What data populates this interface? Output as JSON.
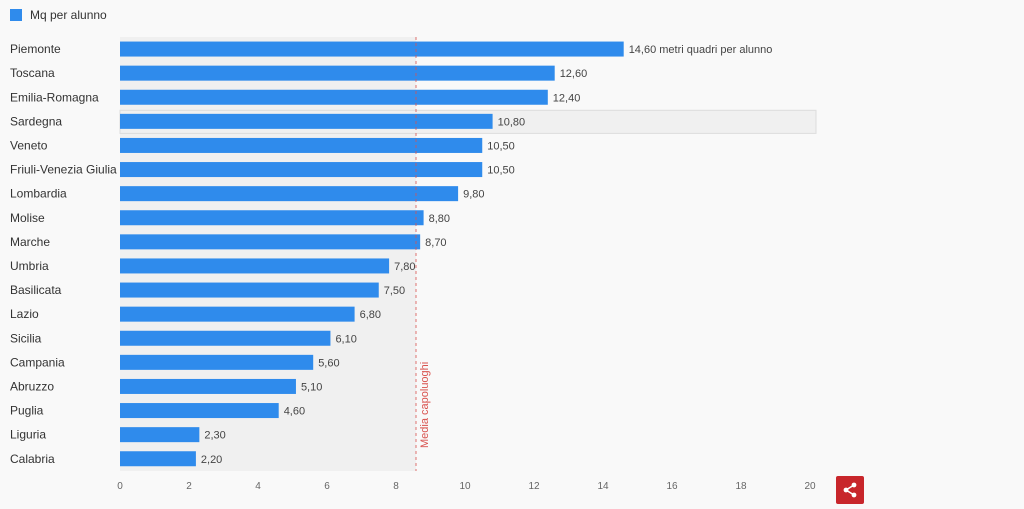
{
  "chart_data": {
    "type": "bar",
    "orientation": "horizontal",
    "legend": {
      "label": "Mq per alunno",
      "color": "#2f8bec",
      "placement": "top-left"
    },
    "categories": [
      "Piemonte",
      "Toscana",
      "Emilia-Romagna",
      "Sardegna",
      "Veneto",
      "Friuli-Venezia Giulia",
      "Lombardia",
      "Molise",
      "Marche",
      "Umbria",
      "Basilicata",
      "Lazio",
      "Sicilia",
      "Campania",
      "Abruzzo",
      "Puglia",
      "Liguria",
      "Calabria"
    ],
    "series": [
      {
        "name": "Mq per alunno",
        "values": [
          14.6,
          12.6,
          12.4,
          10.8,
          10.5,
          10.5,
          9.8,
          8.8,
          8.7,
          7.8,
          7.5,
          6.8,
          6.1,
          5.6,
          5.1,
          4.6,
          2.3,
          2.2
        ]
      }
    ],
    "data_labels": [
      "14,60 metri quadri per alunno",
      "12,60",
      "12,40",
      "10,80",
      "10,50",
      "10,50",
      "9,80",
      "8,80",
      "8,70",
      "7,80",
      "7,50",
      "6,80",
      "6,10",
      "5,60",
      "5,10",
      "4,60",
      "2,30",
      "2,20"
    ],
    "xlim": [
      0,
      20
    ],
    "xticks": [
      "0",
      "2",
      "4",
      "6",
      "8",
      "10",
      "12",
      "14",
      "16",
      "18",
      "20"
    ],
    "reference_line": {
      "label": "Media capoluoghi",
      "color": "#d9534f"
    },
    "highlighted_category": "Sardegna",
    "bar_color": "#2f8bec"
  },
  "ui": {
    "share_icon": "share-icon",
    "accent_color": "#c8262b"
  }
}
